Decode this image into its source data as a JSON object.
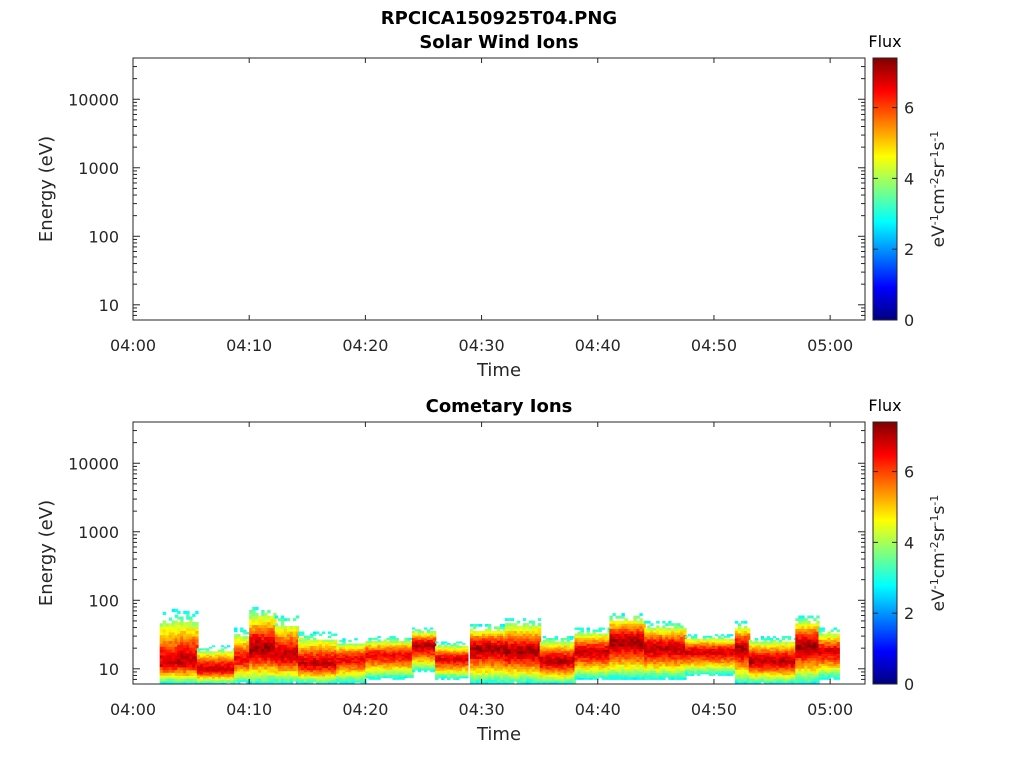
{
  "figure": {
    "title": "RPCICA150925T04.PNG"
  },
  "chart_data": [
    {
      "type": "heatmap",
      "title": "Solar Wind Ions",
      "xlabel": "Time",
      "ylabel": "Energy (eV)",
      "x_ticks": [
        "04:00",
        "04:10",
        "04:20",
        "04:30",
        "04:40",
        "04:50",
        "05:00"
      ],
      "xlim_minutes": [
        0,
        63
      ],
      "y_ticks": [
        {
          "label": "10",
          "value": 10
        },
        {
          "label": "100",
          "value": 100
        },
        {
          "label": "1000",
          "value": 1000
        },
        {
          "label": "10000",
          "value": 10000
        }
      ],
      "ylim": [
        6,
        40000
      ],
      "y_scale": "log",
      "colorbar": {
        "label": "Flux",
        "units": "eV-1cm-2sr-1s-1",
        "ticks": [
          "0",
          "2",
          "4",
          "6"
        ],
        "range": [
          0,
          7.4
        ],
        "colormap": "jet"
      },
      "segments": []
    },
    {
      "type": "heatmap",
      "title": "Cometary Ions",
      "xlabel": "Time",
      "ylabel": "Energy (eV)",
      "x_ticks": [
        "04:00",
        "04:10",
        "04:20",
        "04:30",
        "04:40",
        "04:50",
        "05:00"
      ],
      "xlim_minutes": [
        0,
        63
      ],
      "y_ticks": [
        {
          "label": "10",
          "value": 10
        },
        {
          "label": "100",
          "value": 100
        },
        {
          "label": "1000",
          "value": 1000
        },
        {
          "label": "10000",
          "value": 10000
        }
      ],
      "ylim": [
        6,
        40000
      ],
      "y_scale": "log",
      "colorbar": {
        "label": "Flux",
        "units": "eV-1cm-2sr-1s-1",
        "ticks": [
          "0",
          "2",
          "4",
          "6"
        ],
        "range": [
          0,
          7.4
        ],
        "colormap": "jet"
      },
      "segments": [
        {
          "t_start": 2.3,
          "t_end": 3.8,
          "e_min": 6,
          "e_max": 75,
          "e_peak": 12,
          "flux_peak": 6.8
        },
        {
          "t_start": 3.8,
          "t_end": 5.5,
          "e_min": 6,
          "e_max": 70,
          "e_peak": 13,
          "flux_peak": 7.0
        },
        {
          "t_start": 5.5,
          "t_end": 8.7,
          "e_min": 6,
          "e_max": 22,
          "e_peak": 10,
          "flux_peak": 6.9
        },
        {
          "t_start": 8.7,
          "t_end": 10.0,
          "e_min": 6,
          "e_max": 40,
          "e_peak": 14,
          "flux_peak": 6.6
        },
        {
          "t_start": 10.0,
          "t_end": 12.2,
          "e_min": 6,
          "e_max": 80,
          "e_peak": 20,
          "flux_peak": 7.2
        },
        {
          "t_start": 12.2,
          "t_end": 14.2,
          "e_min": 6,
          "e_max": 60,
          "e_peak": 16,
          "flux_peak": 7.0
        },
        {
          "t_start": 14.2,
          "t_end": 17.5,
          "e_min": 6,
          "e_max": 35,
          "e_peak": 12,
          "flux_peak": 6.9
        },
        {
          "t_start": 17.5,
          "t_end": 20.0,
          "e_min": 6,
          "e_max": 28,
          "e_peak": 14,
          "flux_peak": 6.6
        },
        {
          "t_start": 20.0,
          "t_end": 24.0,
          "e_min": 7,
          "e_max": 30,
          "e_peak": 16,
          "flux_peak": 6.6
        },
        {
          "t_start": 24.0,
          "t_end": 26.0,
          "e_min": 9,
          "e_max": 40,
          "e_peak": 22,
          "flux_peak": 7.0
        },
        {
          "t_start": 26.0,
          "t_end": 28.8,
          "e_min": 7,
          "e_max": 25,
          "e_peak": 14,
          "flux_peak": 6.7
        },
        {
          "t_start": 29.0,
          "t_end": 32.0,
          "e_min": 6,
          "e_max": 45,
          "e_peak": 20,
          "flux_peak": 7.1
        },
        {
          "t_start": 32.0,
          "t_end": 35.0,
          "e_min": 6,
          "e_max": 55,
          "e_peak": 18,
          "flux_peak": 7.1
        },
        {
          "t_start": 35.0,
          "t_end": 38.0,
          "e_min": 6,
          "e_max": 30,
          "e_peak": 13,
          "flux_peak": 7.0
        },
        {
          "t_start": 38.0,
          "t_end": 41.0,
          "e_min": 7,
          "e_max": 40,
          "e_peak": 18,
          "flux_peak": 6.9
        },
        {
          "t_start": 41.0,
          "t_end": 44.0,
          "e_min": 7,
          "e_max": 65,
          "e_peak": 25,
          "flux_peak": 7.2
        },
        {
          "t_start": 44.0,
          "t_end": 47.5,
          "e_min": 7,
          "e_max": 50,
          "e_peak": 20,
          "flux_peak": 7.0
        },
        {
          "t_start": 47.5,
          "t_end": 51.8,
          "e_min": 8,
          "e_max": 32,
          "e_peak": 18,
          "flux_peak": 6.8
        },
        {
          "t_start": 51.8,
          "t_end": 53.0,
          "e_min": 6,
          "e_max": 50,
          "e_peak": 20,
          "flux_peak": 7.1
        },
        {
          "t_start": 53.0,
          "t_end": 57.0,
          "e_min": 6,
          "e_max": 30,
          "e_peak": 13,
          "flux_peak": 7.0
        },
        {
          "t_start": 57.0,
          "t_end": 59.0,
          "e_min": 6,
          "e_max": 60,
          "e_peak": 22,
          "flux_peak": 7.2
        },
        {
          "t_start": 59.0,
          "t_end": 60.8,
          "e_min": 7,
          "e_max": 40,
          "e_peak": 18,
          "flux_peak": 6.8
        }
      ]
    }
  ]
}
